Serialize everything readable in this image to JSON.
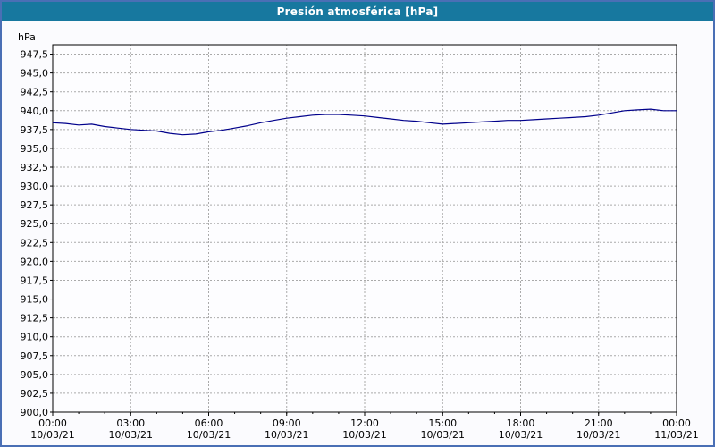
{
  "window": {
    "title": "Presión atmosférica [hPa]"
  },
  "colors": {
    "titlebar_bg": "#17789f",
    "titlebar_text": "#ffffff",
    "window_border": "#4a6fb5",
    "chart_bg": "#fbfbfe",
    "plot_bg": "#fdfdff",
    "plot_border": "#000000",
    "grid": "#aaaaaa",
    "axis_text": "#000000",
    "line": "#00008b"
  },
  "chart_data": {
    "type": "line",
    "title": "Presión atmosférica [hPa]",
    "y_unit_label": "hPa",
    "ylabel": "hPa",
    "xlabel": "",
    "ylim": [
      900,
      948.75
    ],
    "y_tick_start": 900,
    "y_tick_step": 2.5,
    "y_tick_end": 947.5,
    "y_tick_labels_top_to_bottom": [
      "947,5",
      "945,0",
      "942,5",
      "940,0",
      "937,5",
      "935,0",
      "932,5",
      "930,0",
      "927,5",
      "925,0",
      "922,5",
      "920,0",
      "917,5",
      "915,0",
      "912,5",
      "910,0",
      "907,5",
      "905,0",
      "902,5",
      "900,0"
    ],
    "xlim": [
      0,
      24
    ],
    "x_major_step_hours": 3,
    "x_minor_step_hours": 1,
    "x_tick_labels": [
      {
        "time": "00:00",
        "date": "10/03/21"
      },
      {
        "time": "03:00",
        "date": "10/03/21"
      },
      {
        "time": "06:00",
        "date": "10/03/21"
      },
      {
        "time": "09:00",
        "date": "10/03/21"
      },
      {
        "time": "12:00",
        "date": "10/03/21"
      },
      {
        "time": "15:00",
        "date": "10/03/21"
      },
      {
        "time": "18:00",
        "date": "10/03/21"
      },
      {
        "time": "21:00",
        "date": "10/03/21"
      },
      {
        "time": "00:00",
        "date": "11/03/21"
      }
    ],
    "grid": {
      "dashed": true,
      "color": "#aaaaaa",
      "horizontal": true,
      "vertical": true
    },
    "legend": "none",
    "series": [
      {
        "name": "Presión atmosférica",
        "color": "#00008b",
        "points_hour_hpa": [
          [
            0,
            938.4
          ],
          [
            0.5,
            938.3
          ],
          [
            1,
            938.1
          ],
          [
            1.5,
            938.2
          ],
          [
            2,
            937.9
          ],
          [
            2.5,
            937.7
          ],
          [
            3,
            937.5
          ],
          [
            3.5,
            937.4
          ],
          [
            4,
            937.3
          ],
          [
            4.5,
            937.0
          ],
          [
            5,
            936.8
          ],
          [
            5.5,
            936.9
          ],
          [
            6,
            937.2
          ],
          [
            6.5,
            937.4
          ],
          [
            7,
            937.7
          ],
          [
            7.5,
            938.0
          ],
          [
            8,
            938.4
          ],
          [
            8.5,
            938.7
          ],
          [
            9,
            939.0
          ],
          [
            9.5,
            939.2
          ],
          [
            10,
            939.4
          ],
          [
            10.5,
            939.5
          ],
          [
            11,
            939.5
          ],
          [
            11.5,
            939.4
          ],
          [
            12,
            939.3
          ],
          [
            12.5,
            939.1
          ],
          [
            13,
            938.9
          ],
          [
            13.5,
            938.7
          ],
          [
            14,
            938.6
          ],
          [
            14.5,
            938.4
          ],
          [
            15,
            938.2
          ],
          [
            15.5,
            938.3
          ],
          [
            16,
            938.4
          ],
          [
            16.5,
            938.5
          ],
          [
            17,
            938.6
          ],
          [
            17.5,
            938.7
          ],
          [
            18,
            938.7
          ],
          [
            18.5,
            938.8
          ],
          [
            19,
            938.9
          ],
          [
            19.5,
            939.0
          ],
          [
            20,
            939.1
          ],
          [
            20.5,
            939.2
          ],
          [
            21,
            939.4
          ],
          [
            21.5,
            939.7
          ],
          [
            22,
            940.0
          ],
          [
            22.5,
            940.1
          ],
          [
            23,
            940.2
          ],
          [
            23.5,
            940.0
          ],
          [
            24,
            940.0
          ]
        ]
      }
    ]
  }
}
